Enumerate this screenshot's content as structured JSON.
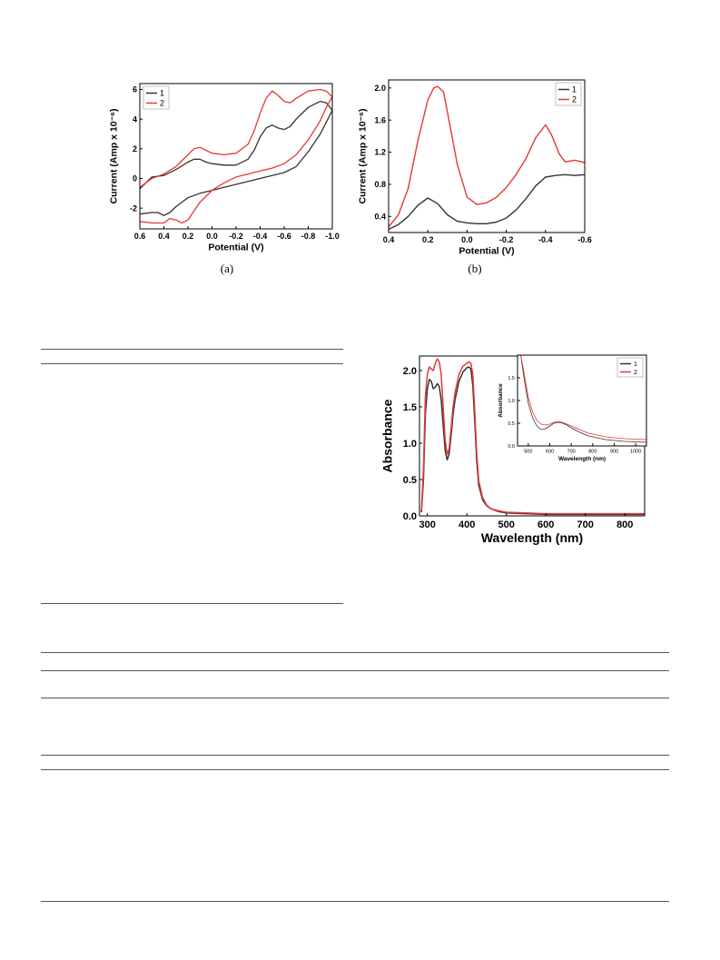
{
  "captions": {
    "a": "(a)",
    "b": "(b)"
  },
  "chart_data": [
    {
      "id": "cv",
      "type": "line",
      "xlabel": "Potential (V)",
      "ylabel": "Current (Amp x 10⁻⁶)",
      "xlim": [
        0.6,
        -1.0
      ],
      "ylim": [
        -3.4,
        6.4
      ],
      "xticks": [
        "0.6",
        "0.4",
        "0.2",
        "0.0",
        "-0.2",
        "-0.4",
        "-0.6",
        "-0.8",
        "-1.0"
      ],
      "xtick_values": [
        0.6,
        0.4,
        0.2,
        0.0,
        -0.2,
        -0.4,
        -0.6,
        -0.8,
        -1.0
      ],
      "yticks": [
        "-2",
        "0",
        "2",
        "4",
        "6"
      ],
      "ytick_values": [
        -2,
        0,
        2,
        4,
        6
      ],
      "legend": "top-left",
      "series": [
        {
          "name": "1",
          "color": "#333333",
          "x": [
            0.6,
            0.5,
            0.4,
            0.3,
            0.2,
            0.15,
            0.1,
            0.05,
            0.0,
            -0.1,
            -0.2,
            -0.3,
            -0.35,
            -0.4,
            -0.45,
            -0.5,
            -0.55,
            -0.6,
            -0.65,
            -0.7,
            -0.8,
            -0.9,
            -0.95,
            -1.0,
            -0.95,
            -0.9,
            -0.8,
            -0.7,
            -0.6,
            -0.5,
            -0.4,
            -0.3,
            -0.2,
            -0.1,
            0.0,
            0.1,
            0.2,
            0.25,
            0.3,
            0.35,
            0.4,
            0.45,
            0.5,
            0.6
          ],
          "y": [
            -0.7,
            0.1,
            0.2,
            0.6,
            1.1,
            1.3,
            1.3,
            1.1,
            1.0,
            0.9,
            0.9,
            1.3,
            1.9,
            2.8,
            3.4,
            3.6,
            3.4,
            3.3,
            3.5,
            4.0,
            4.8,
            5.2,
            5.1,
            4.6,
            3.8,
            3.0,
            1.8,
            0.8,
            0.4,
            0.2,
            0.0,
            -0.2,
            -0.4,
            -0.6,
            -0.8,
            -1.0,
            -1.3,
            -1.6,
            -1.9,
            -2.3,
            -2.5,
            -2.3,
            -2.3,
            -2.4
          ]
        },
        {
          "name": "2",
          "color": "#e53935",
          "x": [
            0.6,
            0.5,
            0.4,
            0.3,
            0.2,
            0.15,
            0.1,
            0.05,
            0.0,
            -0.1,
            -0.2,
            -0.3,
            -0.35,
            -0.4,
            -0.45,
            -0.5,
            -0.55,
            -0.6,
            -0.65,
            -0.7,
            -0.8,
            -0.9,
            -0.95,
            -1.0,
            -0.95,
            -0.9,
            -0.8,
            -0.7,
            -0.6,
            -0.5,
            -0.4,
            -0.3,
            -0.2,
            -0.1,
            0.0,
            0.1,
            0.15,
            0.2,
            0.25,
            0.3,
            0.35,
            0.4,
            0.5,
            0.6
          ],
          "y": [
            -0.6,
            0.0,
            0.3,
            0.8,
            1.6,
            2.0,
            2.1,
            1.9,
            1.7,
            1.6,
            1.7,
            2.3,
            3.2,
            4.4,
            5.4,
            5.9,
            5.6,
            5.2,
            5.1,
            5.4,
            5.9,
            6.0,
            5.9,
            5.5,
            4.8,
            3.9,
            2.6,
            1.6,
            1.0,
            0.7,
            0.5,
            0.3,
            0.1,
            -0.3,
            -0.8,
            -1.6,
            -2.2,
            -2.8,
            -3.0,
            -2.8,
            -2.7,
            -3.0,
            -3.0,
            -2.9
          ]
        }
      ]
    },
    {
      "id": "dpv",
      "type": "line",
      "xlabel": "Potential (V)",
      "ylabel": "Current (Amp x 10⁻⁶)",
      "xlim": [
        0.4,
        -0.6
      ],
      "ylim": [
        0.2,
        2.1
      ],
      "xticks": [
        "0.4",
        "0.2",
        "0.0",
        "-0.2",
        "-0.4",
        "-0.6"
      ],
      "xtick_values": [
        0.4,
        0.2,
        0.0,
        -0.2,
        -0.4,
        -0.6
      ],
      "yticks": [
        "0.4",
        "0.8",
        "1.2",
        "1.6",
        "2.0"
      ],
      "ytick_values": [
        0.4,
        0.8,
        1.2,
        1.6,
        2.0
      ],
      "legend": "top-right",
      "series": [
        {
          "name": "1",
          "color": "#333333",
          "x": [
            0.4,
            0.35,
            0.3,
            0.25,
            0.2,
            0.15,
            0.1,
            0.05,
            0.0,
            -0.05,
            -0.1,
            -0.15,
            -0.2,
            -0.25,
            -0.3,
            -0.35,
            -0.4,
            -0.45,
            -0.5,
            -0.55,
            -0.6
          ],
          "y": [
            0.24,
            0.3,
            0.4,
            0.54,
            0.63,
            0.56,
            0.42,
            0.34,
            0.32,
            0.31,
            0.31,
            0.33,
            0.38,
            0.48,
            0.62,
            0.78,
            0.89,
            0.91,
            0.92,
            0.91,
            0.92
          ]
        },
        {
          "name": "2",
          "color": "#e53935",
          "x": [
            0.4,
            0.35,
            0.3,
            0.25,
            0.2,
            0.17,
            0.15,
            0.12,
            0.1,
            0.05,
            0.0,
            -0.05,
            -0.1,
            -0.15,
            -0.2,
            -0.25,
            -0.3,
            -0.35,
            -0.4,
            -0.43,
            -0.47,
            -0.5,
            -0.55,
            -0.6
          ],
          "y": [
            0.27,
            0.42,
            0.75,
            1.35,
            1.85,
            2.0,
            2.02,
            1.95,
            1.7,
            1.05,
            0.64,
            0.55,
            0.57,
            0.64,
            0.76,
            0.92,
            1.12,
            1.38,
            1.54,
            1.42,
            1.18,
            1.08,
            1.1,
            1.07
          ]
        }
      ]
    },
    {
      "id": "uv",
      "type": "line",
      "xlabel": "Wavelength (nm)",
      "ylabel": "Absorbance",
      "xlim": [
        280,
        850
      ],
      "ylim": [
        0,
        2.2
      ],
      "xticks": [
        "300",
        "400",
        "500",
        "600",
        "700",
        "800"
      ],
      "xtick_values": [
        300,
        400,
        500,
        600,
        700,
        800
      ],
      "yticks": [
        "0.0",
        "0.5",
        "1.0",
        "1.5",
        "2.0"
      ],
      "ytick_values": [
        0,
        0.5,
        1.0,
        1.5,
        2.0
      ],
      "series": [
        {
          "name": "1",
          "color": "#333333",
          "x": [
            285,
            290,
            295,
            300,
            305,
            310,
            315,
            320,
            325,
            330,
            335,
            340,
            345,
            350,
            355,
            360,
            365,
            370,
            380,
            390,
            400,
            405,
            410,
            415,
            420,
            425,
            430,
            440,
            450,
            460,
            480,
            500,
            550,
            600,
            700,
            850
          ],
          "y": [
            0.05,
            0.5,
            1.4,
            1.75,
            1.88,
            1.85,
            1.75,
            1.77,
            1.82,
            1.78,
            1.6,
            1.25,
            0.9,
            0.77,
            0.85,
            1.1,
            1.4,
            1.6,
            1.85,
            1.98,
            2.04,
            2.05,
            2.02,
            1.8,
            1.3,
            0.75,
            0.42,
            0.22,
            0.14,
            0.1,
            0.06,
            0.04,
            0.03,
            0.02,
            0.02,
            0.02
          ]
        },
        {
          "name": "2",
          "color": "#e53935",
          "x": [
            285,
            290,
            295,
            300,
            305,
            310,
            315,
            320,
            325,
            330,
            335,
            340,
            345,
            350,
            355,
            360,
            365,
            370,
            380,
            390,
            400,
            405,
            410,
            415,
            420,
            425,
            430,
            440,
            450,
            460,
            480,
            500,
            550,
            600,
            700,
            850
          ],
          "y": [
            0.08,
            0.65,
            1.65,
            1.95,
            2.05,
            2.02,
            2.0,
            2.1,
            2.16,
            2.12,
            1.95,
            1.5,
            1.05,
            0.85,
            0.92,
            1.2,
            1.5,
            1.7,
            1.95,
            2.06,
            2.1,
            2.12,
            2.1,
            1.95,
            1.45,
            0.85,
            0.48,
            0.25,
            0.15,
            0.1,
            0.07,
            0.05,
            0.04,
            0.03,
            0.03,
            0.03
          ]
        }
      ]
    },
    {
      "id": "uv-inset",
      "type": "line",
      "xlabel": "Wavelength (nm)",
      "ylabel": "Absorbance",
      "xlim": [
        450,
        1050
      ],
      "ylim": [
        0,
        2.0
      ],
      "xticks": [
        "500",
        "600",
        "700",
        "800",
        "900",
        "1000"
      ],
      "xtick_values": [
        500,
        600,
        700,
        800,
        900,
        1000
      ],
      "yticks": [
        "0.0",
        "0.5",
        "1.0",
        "1.5"
      ],
      "ytick_values": [
        0,
        0.5,
        1.0,
        1.5
      ],
      "legend": "top-right",
      "series": [
        {
          "name": "1",
          "color": "#333333",
          "x": [
            465,
            480,
            500,
            520,
            540,
            560,
            580,
            600,
            620,
            640,
            660,
            680,
            700,
            740,
            780,
            820,
            860,
            900,
            950,
            1000,
            1050
          ],
          "y": [
            2.0,
            1.5,
            0.95,
            0.62,
            0.44,
            0.36,
            0.38,
            0.44,
            0.5,
            0.52,
            0.5,
            0.46,
            0.4,
            0.3,
            0.22,
            0.18,
            0.14,
            0.12,
            0.1,
            0.09,
            0.08
          ]
        },
        {
          "name": "2",
          "color": "#e53935",
          "x": [
            465,
            480,
            500,
            520,
            540,
            560,
            580,
            600,
            620,
            640,
            660,
            680,
            700,
            740,
            780,
            820,
            860,
            900,
            950,
            1000,
            1050
          ],
          "y": [
            2.0,
            1.62,
            1.08,
            0.75,
            0.56,
            0.48,
            0.46,
            0.48,
            0.52,
            0.54,
            0.52,
            0.48,
            0.44,
            0.36,
            0.28,
            0.24,
            0.2,
            0.18,
            0.16,
            0.15,
            0.14
          ]
        }
      ]
    }
  ]
}
